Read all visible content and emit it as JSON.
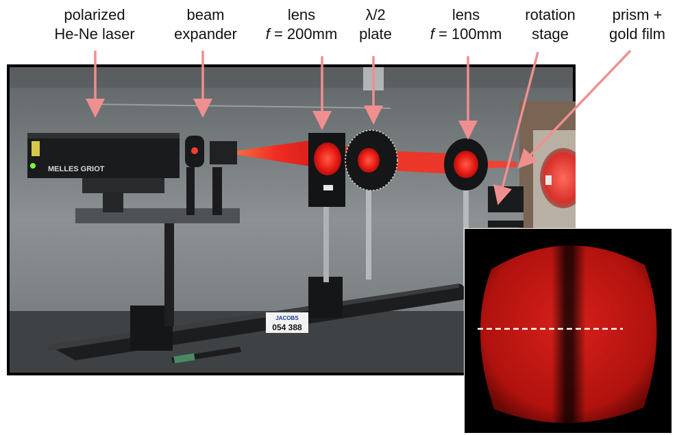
{
  "labels": [
    {
      "id": "laser",
      "line1": "polarized",
      "line2": "He-Ne laser"
    },
    {
      "id": "expander",
      "line1": "beam",
      "line2": "expander"
    },
    {
      "id": "lens1",
      "line1": "lens",
      "line2_var": "f",
      "line2_rest": " = 200mm"
    },
    {
      "id": "plate",
      "line1": "λ/2",
      "line2": "plate"
    },
    {
      "id": "lens2",
      "line1": "lens",
      "line2_var": "f",
      "line2_rest": " = 100mm"
    },
    {
      "id": "stage",
      "line1": "rotation",
      "line2": "stage"
    },
    {
      "id": "prism",
      "line1": "prism +",
      "line2": "gold film"
    }
  ],
  "equipment_text": {
    "laser_brand": "MELLES GRIOT",
    "asset_tag_top": "JACOBS",
    "asset_tag_number": "054 388"
  },
  "colors": {
    "arrow": "#f08f8f",
    "beam": "#ff2a1a",
    "frame": "#000000",
    "inset_spot": "#d11512",
    "dashed_line": "#ffffff"
  }
}
